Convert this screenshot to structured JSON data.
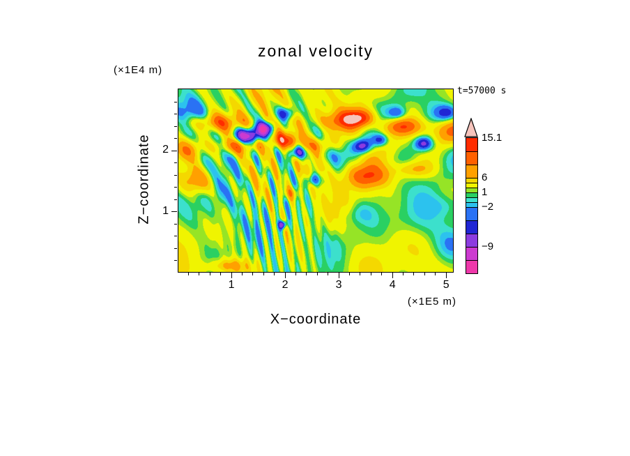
{
  "title": "zonal velocity",
  "time_label": "t=57000 s",
  "axes": {
    "xlabel": "X−coordinate",
    "ylabel": "Z−coordinate",
    "x_unit_label": "(×1E5 m)",
    "y_unit_label": "(×1E4 m)",
    "x_tick_labels": [
      "1",
      "2",
      "3",
      "4",
      "5"
    ],
    "y_tick_labels": [
      "1",
      "2"
    ]
  },
  "colorbar": {
    "labels": [
      {
        "text": "15.1",
        "value": 15.1
      },
      {
        "text": "6",
        "value": 6
      },
      {
        "text": "1",
        "value": 1
      },
      {
        "text": "−2",
        "value": -2
      },
      {
        "text": "−9",
        "value": -9
      }
    ]
  },
  "chart_data": {
    "type": "filled_contour",
    "title": "zonal velocity",
    "xlabel": "X−coordinate",
    "ylabel": "Z−coordinate",
    "x_units": "(×1E5 m)",
    "y_units": "(×1E4 m)",
    "time": "t=57000 s",
    "x_range": [
      0,
      5.14
    ],
    "y_range": [
      0,
      3.02
    ],
    "x_ticks": [
      1,
      2,
      3,
      4,
      5
    ],
    "y_ticks": [
      1,
      2
    ],
    "minor_tick_step": 0.2,
    "max_value": 15.1,
    "levels": [
      -12,
      -9,
      -6,
      -4,
      -2,
      -1,
      0,
      1,
      2,
      4,
      6,
      9,
      12,
      15.1
    ],
    "band_colors": [
      "#ee38aa",
      "#cc3ad0",
      "#8c3ce0",
      "#2026d4",
      "#2a72f4",
      "#2cc2ee",
      "#3ce0cc",
      "#2ad062",
      "#96e426",
      "#f0f400",
      "#f4d800",
      "#ffa000",
      "#ff6000",
      "#ff2c00"
    ],
    "over_color": "#f6c4bc",
    "colorbar_band_heights": [
      19,
      19,
      19,
      19,
      19,
      7,
      7,
      7,
      7,
      7,
      7,
      19,
      19,
      19
    ],
    "field_model": {
      "base": 2.3,
      "waves": [
        {
          "amp": 4.2,
          "kx": 13,
          "ky": 9,
          "phase": 0.5,
          "cx": 1.5,
          "cy": 2.1,
          "sx": 0.95,
          "sy": 0.8
        },
        {
          "amp": 3.6,
          "kx": 30,
          "ky": 6,
          "phase": 0.0,
          "cx": 1.85,
          "cy": 0.85,
          "sx": 0.5,
          "sy": 0.9
        },
        {
          "amp": 1.3,
          "kx": 1.3,
          "ky": 1.0,
          "phase": 2.2,
          "cx": 2.6,
          "cy": 1.5,
          "sx": 30,
          "sy": 30
        },
        {
          "amp": 2.2,
          "kx": 6,
          "ky": -5,
          "phase": 1.2,
          "cx": 3.9,
          "cy": 2.2,
          "sx": 1.2,
          "sy": 0.6
        },
        {
          "amp": 1.2,
          "kx": 5.5,
          "ky": 3.5,
          "phase": 0.7,
          "cx": 2.6,
          "cy": 1.5,
          "sx": 30,
          "sy": 30
        },
        {
          "amp": 0.9,
          "kx": 3.2,
          "ky": -4.2,
          "phase": 2.9,
          "cx": 2.6,
          "cy": 1.5,
          "sx": 30,
          "sy": 30
        }
      ],
      "blobs": [
        {
          "x": 1.32,
          "y": 2.25,
          "sx": 0.2,
          "sy": 0.09,
          "amp": -13
        },
        {
          "x": 1.62,
          "y": 2.38,
          "sx": 0.12,
          "sy": 0.07,
          "amp": -10
        },
        {
          "x": 2.22,
          "y": 1.98,
          "sx": 0.13,
          "sy": 0.08,
          "amp": -11
        },
        {
          "x": 2.02,
          "y": 2.62,
          "sx": 0.12,
          "sy": 0.08,
          "amp": -8
        },
        {
          "x": 2.52,
          "y": 1.52,
          "sx": 0.1,
          "sy": 0.07,
          "amp": -7
        },
        {
          "x": 3.45,
          "y": 2.08,
          "sx": 0.12,
          "sy": 0.08,
          "amp": -9
        },
        {
          "x": 3.78,
          "y": 2.18,
          "sx": 0.1,
          "sy": 0.07,
          "amp": -7
        },
        {
          "x": 4.6,
          "y": 2.12,
          "sx": 0.12,
          "sy": 0.08,
          "amp": -9
        },
        {
          "x": 5.05,
          "y": 2.62,
          "sx": 0.16,
          "sy": 0.1,
          "amp": -8
        },
        {
          "x": 4.1,
          "y": 2.62,
          "sx": 0.12,
          "sy": 0.08,
          "amp": -6
        },
        {
          "x": 1.95,
          "y": 0.78,
          "sx": 0.05,
          "sy": 0.05,
          "amp": -12
        },
        {
          "x": 4.4,
          "y": 0.8,
          "sx": 0.35,
          "sy": 0.22,
          "amp": -3
        },
        {
          "x": 5.0,
          "y": 1.1,
          "sx": 0.25,
          "sy": 0.15,
          "amp": -3
        },
        {
          "x": 5.15,
          "y": 0.45,
          "sx": 0.22,
          "sy": 0.18,
          "amp": -3
        },
        {
          "x": 3.35,
          "y": 0.95,
          "sx": 0.22,
          "sy": 0.13,
          "amp": -2.5
        },
        {
          "x": 2.9,
          "y": 1.95,
          "sx": 0.22,
          "sy": 0.13,
          "amp": -3.5
        },
        {
          "x": 0.3,
          "y": 2.6,
          "sx": 0.25,
          "sy": 0.18,
          "amp": -3.5
        },
        {
          "x": 4.2,
          "y": 1.15,
          "sx": 0.6,
          "sy": 0.35,
          "amp": -1.8
        },
        {
          "x": 3.1,
          "y": 0.5,
          "sx": 0.45,
          "sy": 0.22,
          "amp": -1.8
        },
        {
          "x": 0.65,
          "y": 1.15,
          "sx": 0.3,
          "sy": 0.25,
          "amp": -2.2
        },
        {
          "x": 2.65,
          "y": 2.35,
          "sx": 0.3,
          "sy": 0.2,
          "amp": -2.2
        },
        {
          "x": 0.7,
          "y": 2.47,
          "sx": 0.45,
          "sy": 0.1,
          "amp": 7
        },
        {
          "x": 1.15,
          "y": 2.08,
          "sx": 0.3,
          "sy": 0.09,
          "amp": 7
        },
        {
          "x": 1.95,
          "y": 2.18,
          "sx": 0.25,
          "sy": 0.09,
          "amp": 8
        },
        {
          "x": 0.18,
          "y": 2.02,
          "sx": 0.18,
          "sy": 0.12,
          "amp": 6
        },
        {
          "x": 0.35,
          "y": 1.5,
          "sx": 0.22,
          "sy": 0.15,
          "amp": 7
        },
        {
          "x": 2.55,
          "y": 2.08,
          "sx": 0.22,
          "sy": 0.09,
          "amp": 5
        },
        {
          "x": 3.05,
          "y": 2.5,
          "sx": 0.35,
          "sy": 0.11,
          "amp": 7
        },
        {
          "x": 3.42,
          "y": 2.55,
          "sx": 0.2,
          "sy": 0.1,
          "amp": 9
        },
        {
          "x": 4.2,
          "y": 2.4,
          "sx": 0.3,
          "sy": 0.1,
          "amp": 8
        },
        {
          "x": 5.15,
          "y": 2.32,
          "sx": 0.25,
          "sy": 0.16,
          "amp": 9
        },
        {
          "x": 3.55,
          "y": 1.58,
          "sx": 0.35,
          "sy": 0.13,
          "amp": 7
        },
        {
          "x": 4.4,
          "y": 1.7,
          "sx": 0.25,
          "sy": 0.09,
          "amp": 5
        },
        {
          "x": 0.95,
          "y": 0.1,
          "sx": 0.25,
          "sy": 0.08,
          "amp": 6
        },
        {
          "x": 2.1,
          "y": 1.3,
          "sx": 0.12,
          "sy": 0.08,
          "amp": 5
        }
      ]
    }
  }
}
